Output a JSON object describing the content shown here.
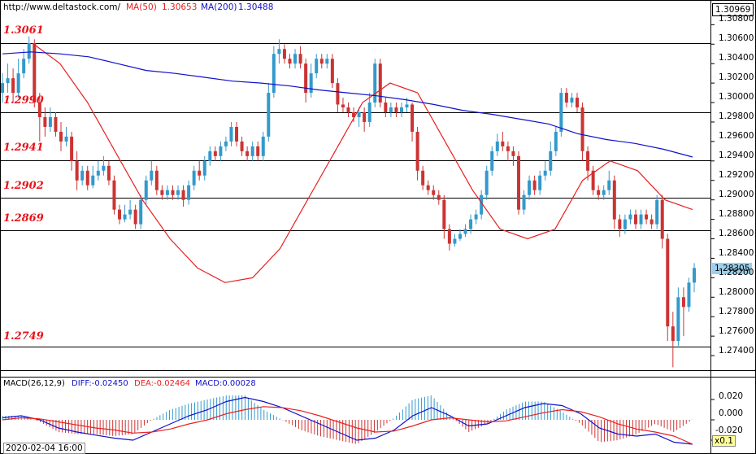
{
  "header": {
    "site": "http://www.deltastock.com/",
    "ma50_label": "MA(50)",
    "ma50_value": "1.30653",
    "ma200_label": "MA(200)",
    "ma200_value": "1.30488"
  },
  "macd_header": {
    "title": "MACD(26,12,9)",
    "diff_label": "DIFF:-0.02450",
    "dea_label": "DEA:-0.02464",
    "macd_label": "MACD:0.00028"
  },
  "price_axis": {
    "top_box": "1.30969",
    "current_box": "1.28305",
    "ticks": [
      "1.30800",
      "1.30600",
      "1.30400",
      "1.30200",
      "1.30000",
      "1.29800",
      "1.29600",
      "1.29400",
      "1.29200",
      "1.29000",
      "1.28800",
      "1.28600",
      "1.28400",
      "1.28200",
      "1.28000",
      "1.27800",
      "1.27600",
      "1.27400"
    ]
  },
  "macd_axis": {
    "ticks": [
      "0.020",
      "0.000",
      "-0.020"
    ]
  },
  "footer": {
    "date": "2020-02-04 16:00",
    "scale": "x0.1"
  },
  "levels": [
    "1.3061",
    "1.2990",
    "1.2941",
    "1.2902",
    "1.2869",
    "1.2749"
  ],
  "colors": {
    "up": "#3399cc",
    "down": "#cc3333",
    "ma50": "#e82020",
    "ma200": "#1010cc",
    "levels_text": "#e8131b",
    "current_box": "#9cd0ea"
  },
  "chart_data": {
    "type": "candlestick",
    "title": "",
    "ylim": [
      1.2725,
      1.3092
    ],
    "levels": [
      1.3061,
      1.299,
      1.2941,
      1.2902,
      1.2869,
      1.2749
    ],
    "series": [
      {
        "name": "MA(50)",
        "values": [
          1.3061,
          1.304,
          1.3,
          1.295,
          1.29,
          1.286,
          1.283,
          1.2815,
          1.282,
          1.285,
          1.29,
          1.295,
          1.3,
          1.302,
          1.301,
          1.296,
          1.291,
          1.287,
          1.286,
          1.287,
          1.292,
          1.294,
          1.293,
          1.29,
          1.289
        ]
      },
      {
        "name": "MA(200)",
        "values": [
          1.305,
          1.3052,
          1.305,
          1.3047,
          1.304,
          1.3033,
          1.303,
          1.3026,
          1.3022,
          1.302,
          1.3017,
          1.3013,
          1.301,
          1.3007,
          1.3003,
          1.2998,
          1.2992,
          1.2988,
          1.2983,
          1.2978,
          1.2968,
          1.2962,
          1.2958,
          1.2952,
          1.2944
        ]
      }
    ],
    "candles": [
      [
        1.301,
        1.302,
        1.3,
        1.303
      ],
      [
        1.302,
        1.3025,
        1.301,
        1.304
      ],
      [
        1.3025,
        1.301,
        1.3,
        1.3035
      ],
      [
        1.301,
        1.303,
        1.3005,
        1.3045
      ],
      [
        1.303,
        1.3045,
        1.3025,
        1.3055
      ],
      [
        1.3045,
        1.3061,
        1.304,
        1.3068
      ],
      [
        1.3061,
        1.3,
        1.2995,
        1.3065
      ],
      [
        1.3,
        1.2985,
        1.296,
        1.301
      ],
      [
        1.2985,
        1.2975,
        1.2965,
        1.2995
      ],
      [
        1.2975,
        1.2985,
        1.297,
        1.2995
      ],
      [
        1.2985,
        1.297,
        1.2965,
        1.299
      ],
      [
        1.297,
        1.296,
        1.295,
        1.298
      ],
      [
        1.296,
        1.2965,
        1.2955,
        1.2975
      ],
      [
        1.2965,
        1.294,
        1.293,
        1.297
      ],
      [
        1.294,
        1.292,
        1.291,
        1.295
      ],
      [
        1.292,
        1.293,
        1.2915,
        1.2935
      ],
      [
        1.293,
        1.2915,
        1.291,
        1.2935
      ],
      [
        1.2915,
        1.2925,
        1.2912,
        1.2935
      ],
      [
        1.2925,
        1.293,
        1.292,
        1.294
      ],
      [
        1.293,
        1.2935,
        1.2925,
        1.2945
      ],
      [
        1.2935,
        1.292,
        1.2915,
        1.294
      ],
      [
        1.292,
        1.289,
        1.2885,
        1.2925
      ],
      [
        1.289,
        1.288,
        1.2875,
        1.2895
      ],
      [
        1.288,
        1.2885,
        1.2877,
        1.2895
      ],
      [
        1.2885,
        1.289,
        1.288,
        1.29
      ],
      [
        1.289,
        1.2875,
        1.287,
        1.2895
      ],
      [
        1.2875,
        1.29,
        1.287,
        1.2905
      ],
      [
        1.29,
        1.292,
        1.2895,
        1.2925
      ],
      [
        1.292,
        1.293,
        1.2915,
        1.294
      ],
      [
        1.293,
        1.291,
        1.2905,
        1.2935
      ],
      [
        1.291,
        1.2905,
        1.29,
        1.2915
      ],
      [
        1.2905,
        1.291,
        1.29,
        1.2915
      ],
      [
        1.291,
        1.2905,
        1.29,
        1.2915
      ],
      [
        1.2905,
        1.291,
        1.29,
        1.2915
      ],
      [
        1.291,
        1.29,
        1.2893,
        1.2915
      ],
      [
        1.29,
        1.2915,
        1.2895,
        1.292
      ],
      [
        1.2915,
        1.293,
        1.291,
        1.2935
      ],
      [
        1.293,
        1.2925,
        1.292,
        1.294
      ],
      [
        1.2925,
        1.294,
        1.292,
        1.2945
      ],
      [
        1.294,
        1.295,
        1.2935,
        1.2955
      ],
      [
        1.295,
        1.2945,
        1.294,
        1.2955
      ],
      [
        1.2945,
        1.2955,
        1.294,
        1.296
      ],
      [
        1.2955,
        1.296,
        1.295,
        1.2965
      ],
      [
        1.296,
        1.2975,
        1.2955,
        1.298
      ],
      [
        1.2975,
        1.296,
        1.2955,
        1.298
      ],
      [
        1.296,
        1.295,
        1.2945,
        1.2965
      ],
      [
        1.295,
        1.2945,
        1.294,
        1.2955
      ],
      [
        1.2945,
        1.2955,
        1.294,
        1.296
      ],
      [
        1.2955,
        1.2945,
        1.294,
        1.296
      ],
      [
        1.2945,
        1.2965,
        1.294,
        1.297
      ],
      [
        1.2965,
        1.301,
        1.296,
        1.302
      ],
      [
        1.301,
        1.305,
        1.3005,
        1.3058
      ],
      [
        1.305,
        1.3055,
        1.304,
        1.3065
      ],
      [
        1.3055,
        1.3045,
        1.304,
        1.306
      ],
      [
        1.3045,
        1.304,
        1.3035,
        1.305
      ],
      [
        1.304,
        1.305,
        1.3035,
        1.3055
      ],
      [
        1.305,
        1.304,
        1.3035,
        1.3058
      ],
      [
        1.304,
        1.301,
        1.3,
        1.3045
      ],
      [
        1.301,
        1.303,
        1.3005,
        1.304
      ],
      [
        1.303,
        1.3045,
        1.3025,
        1.305
      ],
      [
        1.3045,
        1.304,
        1.3035,
        1.305
      ],
      [
        1.304,
        1.3045,
        1.3035,
        1.305
      ],
      [
        1.3045,
        1.302,
        1.3015,
        1.305
      ],
      [
        1.302,
        1.2998,
        1.299,
        1.3025
      ],
      [
        1.2998,
        1.2995,
        1.299,
        1.3005
      ],
      [
        1.2995,
        1.299,
        1.2985,
        1.3
      ],
      [
        1.299,
        1.2985,
        1.298,
        1.2995
      ],
      [
        1.2985,
        1.299,
        1.2975,
        1.2995
      ],
      [
        1.299,
        1.298,
        1.297,
        1.2995
      ],
      [
        1.298,
        1.3,
        1.2975,
        1.301
      ],
      [
        1.3,
        1.304,
        1.2995,
        1.3045
      ],
      [
        1.304,
        1.3,
        1.2995,
        1.3045
      ],
      [
        1.3,
        1.299,
        1.2985,
        1.3005
      ],
      [
        1.299,
        1.2995,
        1.2985,
        1.3
      ],
      [
        1.2995,
        1.299,
        1.2985,
        1.3
      ],
      [
        1.299,
        1.2995,
        1.2985,
        1.3
      ],
      [
        1.2995,
        1.2998,
        1.299,
        1.3005
      ],
      [
        1.2998,
        1.297,
        1.296,
        1.3
      ],
      [
        1.297,
        1.293,
        1.292,
        1.2975
      ],
      [
        1.293,
        1.2915,
        1.291,
        1.2935
      ],
      [
        1.2915,
        1.291,
        1.2905,
        1.292
      ],
      [
        1.291,
        1.2905,
        1.29,
        1.2915
      ],
      [
        1.2905,
        1.29,
        1.2895,
        1.291
      ],
      [
        1.29,
        1.287,
        1.286,
        1.2905
      ],
      [
        1.287,
        1.2855,
        1.2848,
        1.2875
      ],
      [
        1.2855,
        1.286,
        1.2852,
        1.2865
      ],
      [
        1.286,
        1.2865,
        1.2858,
        1.287
      ],
      [
        1.2865,
        1.287,
        1.2862,
        1.2875
      ],
      [
        1.287,
        1.288,
        1.2865,
        1.2885
      ],
      [
        1.288,
        1.2885,
        1.2875,
        1.289
      ],
      [
        1.2885,
        1.2905,
        1.288,
        1.291
      ],
      [
        1.2905,
        1.293,
        1.29,
        1.2935
      ],
      [
        1.293,
        1.295,
        1.2925,
        1.2955
      ],
      [
        1.295,
        1.296,
        1.2945,
        1.2968
      ],
      [
        1.296,
        1.2955,
        1.295,
        1.297
      ],
      [
        1.2955,
        1.295,
        1.294,
        1.296
      ],
      [
        1.295,
        1.2945,
        1.2935,
        1.2955
      ],
      [
        1.2945,
        1.289,
        1.2885,
        1.295
      ],
      [
        1.289,
        1.2905,
        1.2885,
        1.291
      ],
      [
        1.2905,
        1.292,
        1.29,
        1.2925
      ],
      [
        1.292,
        1.291,
        1.2905,
        1.2925
      ],
      [
        1.291,
        1.2925,
        1.2905,
        1.293
      ],
      [
        1.2925,
        1.293,
        1.292,
        1.294
      ],
      [
        1.293,
        1.295,
        1.2925,
        1.296
      ],
      [
        1.295,
        1.297,
        1.2945,
        1.2975
      ],
      [
        1.297,
        1.301,
        1.2965,
        1.3015
      ],
      [
        1.301,
        1.3,
        1.2995,
        1.3015
      ],
      [
        1.3,
        1.3005,
        1.2995,
        1.301
      ],
      [
        1.3005,
        1.2995,
        1.299,
        1.301
      ],
      [
        1.2995,
        1.295,
        1.294,
        1.3
      ],
      [
        1.295,
        1.293,
        1.292,
        1.2955
      ],
      [
        1.293,
        1.291,
        1.2905,
        1.2935
      ],
      [
        1.291,
        1.2905,
        1.29,
        1.2915
      ],
      [
        1.2905,
        1.291,
        1.29,
        1.2915
      ],
      [
        1.291,
        1.292,
        1.2905,
        1.293
      ],
      [
        1.292,
        1.288,
        1.287,
        1.2925
      ],
      [
        1.288,
        1.287,
        1.2862,
        1.2885
      ],
      [
        1.287,
        1.288,
        1.2865,
        1.2885
      ],
      [
        1.288,
        1.2885,
        1.2875,
        1.289
      ],
      [
        1.2885,
        1.2875,
        1.287,
        1.289
      ],
      [
        1.2875,
        1.2885,
        1.287,
        1.289
      ],
      [
        1.2885,
        1.288,
        1.2875,
        1.289
      ],
      [
        1.288,
        1.2875,
        1.287,
        1.2885
      ],
      [
        1.2875,
        1.29,
        1.287,
        1.2905
      ],
      [
        1.29,
        1.286,
        1.285,
        1.2905
      ],
      [
        1.286,
        1.277,
        1.2755,
        1.2865
      ],
      [
        1.277,
        1.2755,
        1.2728,
        1.2785
      ],
      [
        1.2755,
        1.28,
        1.275,
        1.281
      ],
      [
        1.28,
        1.279,
        1.276,
        1.281
      ],
      [
        1.279,
        1.2815,
        1.2785,
        1.282
      ],
      [
        1.2815,
        1.283,
        1.2805,
        1.2835
      ]
    ],
    "macd": {
      "diff": [
        0.002,
        0.004,
        0.0,
        -0.008,
        -0.012,
        -0.015,
        -0.018,
        -0.02,
        -0.012,
        -0.004,
        0.004,
        0.01,
        0.018,
        0.022,
        0.018,
        0.012,
        0.004,
        -0.004,
        -0.012,
        -0.02,
        -0.018,
        -0.01,
        0.004,
        0.012,
        0.004,
        -0.006,
        -0.004,
        0.004,
        0.012,
        0.016,
        0.014,
        0.006,
        -0.008,
        -0.014,
        -0.016,
        -0.014,
        -0.022,
        -0.024
      ],
      "dea": [
        0.0,
        0.002,
        0.001,
        -0.002,
        -0.005,
        -0.008,
        -0.01,
        -0.013,
        -0.012,
        -0.009,
        -0.004,
        0.0,
        0.006,
        0.01,
        0.013,
        0.012,
        0.009,
        0.004,
        -0.002,
        -0.008,
        -0.012,
        -0.011,
        -0.006,
        0.0,
        0.002,
        0.0,
        -0.002,
        -0.001,
        0.003,
        0.007,
        0.01,
        0.008,
        0.003,
        -0.004,
        -0.009,
        -0.012,
        -0.016,
        -0.024
      ],
      "hist": [
        0.004,
        0.004,
        -0.002,
        -0.012,
        -0.014,
        -0.014,
        -0.016,
        -0.014,
        0.0,
        0.01,
        0.016,
        0.02,
        0.024,
        0.024,
        0.01,
        0.0,
        -0.01,
        -0.016,
        -0.02,
        -0.024,
        -0.012,
        0.002,
        0.02,
        0.024,
        0.004,
        -0.012,
        -0.004,
        0.01,
        0.018,
        0.018,
        0.008,
        -0.004,
        -0.022,
        -0.02,
        -0.014,
        -0.004,
        -0.012,
        0.0003
      ]
    }
  }
}
